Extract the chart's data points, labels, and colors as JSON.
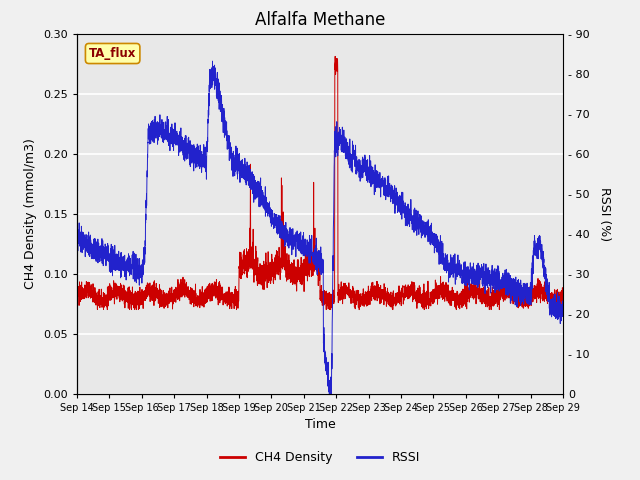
{
  "title": "Alfalfa Methane",
  "xlabel": "Time",
  "ylabel_left": "CH4 Density (mmol/m3)",
  "ylabel_right": "RSSI (%)",
  "annotation": "TA_flux",
  "ylim_left": [
    0.0,
    0.3
  ],
  "ylim_right": [
    0,
    90
  ],
  "yticks_left": [
    0.0,
    0.05,
    0.1,
    0.15,
    0.2,
    0.25,
    0.3
  ],
  "yticks_right": [
    0,
    10,
    20,
    30,
    40,
    50,
    60,
    70,
    80,
    90
  ],
  "xtick_labels": [
    "Sep 14",
    "Sep 15",
    "Sep 16",
    "Sep 17",
    "Sep 18",
    "Sep 19",
    "Sep 20",
    "Sep 21",
    "Sep 22",
    "Sep 23",
    "Sep 24",
    "Sep 25",
    "Sep 26",
    "Sep 27",
    "Sep 28",
    "Sep 29"
  ],
  "bg_color": "#e8e8e8",
  "plot_bg_color": "#e8e8e8",
  "grid_color": "#ffffff",
  "ch4_color": "#cc0000",
  "rssi_color": "#2222cc",
  "legend_ch4": "CH4 Density",
  "legend_rssi": "RSSI",
  "fig_bg": "#f0f0f0"
}
